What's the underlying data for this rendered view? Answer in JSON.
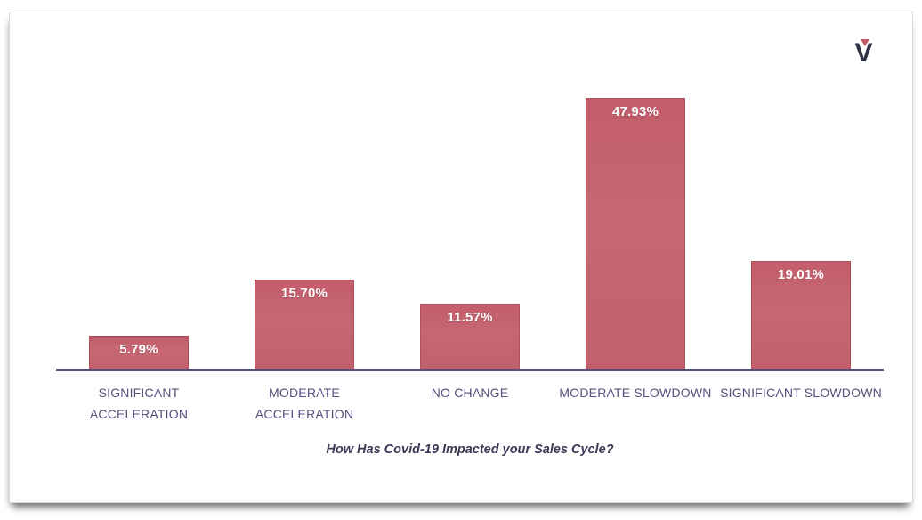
{
  "logo": {
    "glyph": "V",
    "v_color": "#2d3143",
    "accent_color": "#c25b66"
  },
  "chart_data": {
    "type": "bar",
    "categories": [
      "SIGNIFICANT ACCELERATION",
      "MODERATE ACCELERATION",
      "NO CHANGE",
      "MODERATE SLOWDOWN",
      "SIGNIFICANT SLOWDOWN"
    ],
    "values": [
      5.79,
      15.7,
      11.57,
      47.93,
      19.01
    ],
    "value_labels": [
      "5.79%",
      "15.70%",
      "11.57%",
      "47.93%",
      "19.01%"
    ],
    "title": "How Has Covid-19 Impacted your Sales Cycle?",
    "xlabel": "",
    "ylabel": "",
    "ylim": [
      0,
      52
    ],
    "grid": false,
    "legend": false,
    "bar_color": "#c2606d",
    "bar_border_color": "#ae4f5c",
    "value_label_color": "#ffffff",
    "category_label_color": "#5b4c7e",
    "axis_color": "#545178",
    "title_color": "#3b3956"
  }
}
